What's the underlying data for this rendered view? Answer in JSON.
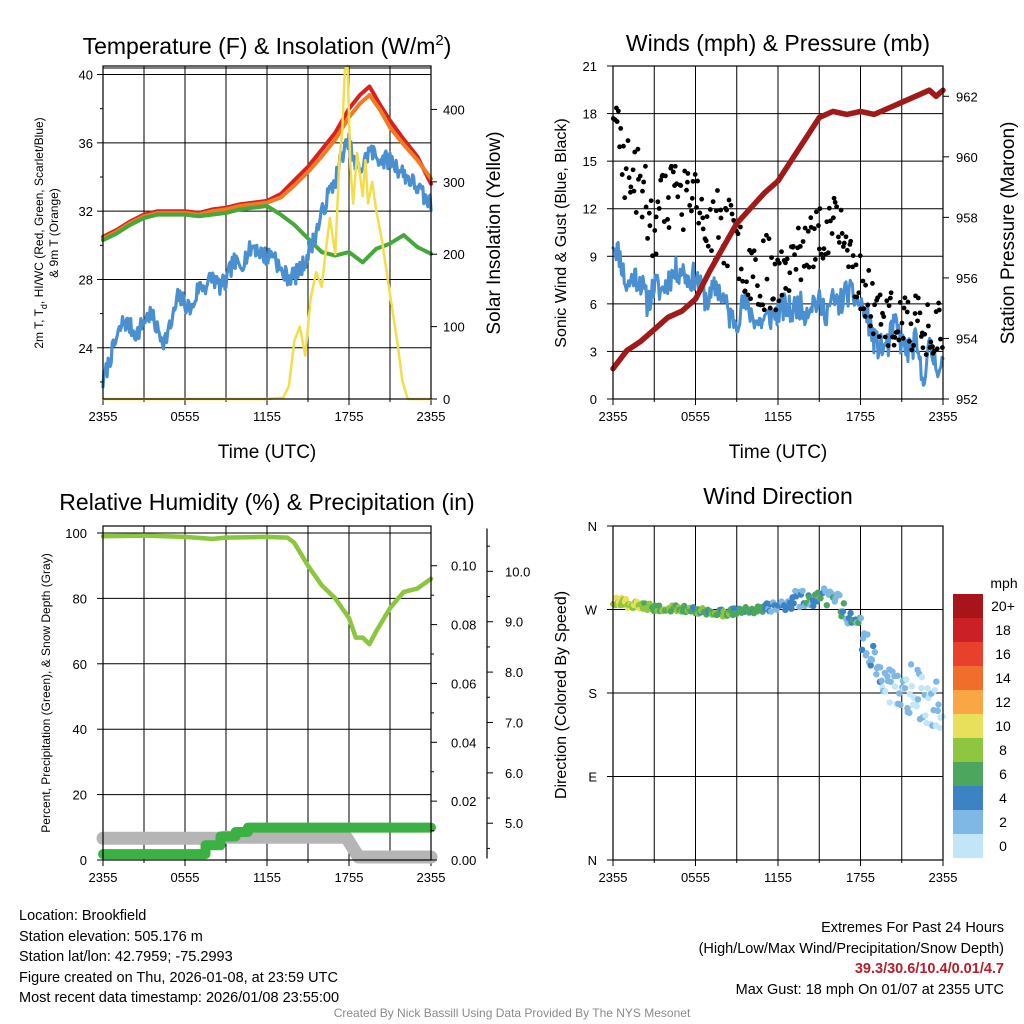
{
  "colors": {
    "temp": "#d7231f",
    "dewpoint": "#45a93a",
    "heatindex": "#4a8fd0",
    "temp9m": "#f07b22",
    "insolation": "#f3dd4a",
    "wind": "#4a8fd0",
    "gust": "#000000",
    "pressure": "#a01a1a",
    "rh": "#8cc63f",
    "precip": "#3bb143",
    "snow": "#b5b5b5"
  },
  "chart_data": [
    {
      "type": "line",
      "id": "temp",
      "title": "Temperature (F) & Insolation (W/m²)",
      "title_main": "Temperature (F) & Insolation (W/m",
      "title_sup": "2",
      "title_end": ")",
      "xlabel": "Time (UTC)",
      "ylabel_left": [
        "2m T, T",
        "d",
        ", HI/WC (Red, Green, Scarlet/Blue)",
        "& 9m T (Orange)"
      ],
      "ylabel_right": "Solar Insolation (Yellow)",
      "x_ticklabels": [
        "2355",
        "0555",
        "1155",
        "1755",
        "2355"
      ],
      "xlim": [
        0,
        24
      ],
      "ylim_left": [
        21,
        40.5
      ],
      "yticks_left": [
        24,
        28,
        32,
        36,
        40
      ],
      "ylim_right": [
        0,
        460
      ],
      "yticks_right": [
        0,
        100,
        200,
        300,
        400
      ],
      "series": [
        {
          "name": "2m T",
          "color_key": "temp",
          "axis": "left",
          "width": 4,
          "x": [
            0,
            1,
            2,
            3,
            4,
            5,
            6,
            7,
            8,
            9,
            10,
            11,
            12,
            13,
            14,
            15,
            16,
            17,
            18,
            18.8,
            19.5,
            20.3,
            21,
            22,
            23,
            24
          ],
          "y": [
            30.5,
            30.9,
            31.4,
            31.8,
            32.0,
            32.0,
            32.0,
            31.9,
            32.1,
            32.2,
            32.4,
            32.5,
            32.6,
            33.0,
            33.8,
            34.6,
            35.6,
            36.6,
            38.0,
            38.8,
            39.3,
            38.2,
            37.3,
            36.2,
            35.2,
            33.6
          ]
        },
        {
          "name": "9m T",
          "color_key": "temp9m",
          "axis": "left",
          "width": 4,
          "x": [
            0,
            1,
            2,
            3,
            4,
            5,
            6,
            7,
            8,
            9,
            10,
            11,
            12,
            13,
            14,
            15,
            16,
            17,
            18,
            18.8,
            19.5,
            20.3,
            21,
            22,
            23,
            24
          ],
          "y": [
            30.4,
            30.8,
            31.3,
            31.7,
            31.9,
            31.9,
            31.9,
            31.8,
            32.0,
            32.1,
            32.3,
            32.4,
            32.5,
            32.8,
            33.5,
            34.3,
            35.2,
            36.2,
            37.5,
            38.3,
            38.8,
            37.9,
            36.9,
            35.9,
            35.0,
            33.9
          ]
        },
        {
          "name": "Td",
          "color_key": "dewpoint",
          "axis": "left",
          "width": 4,
          "x": [
            0,
            1,
            2,
            3,
            4,
            5,
            6,
            7,
            8,
            9,
            10,
            11,
            12,
            13,
            14,
            15,
            16,
            17,
            18,
            19,
            20,
            21,
            22,
            23,
            24
          ],
          "y": [
            30.3,
            30.7,
            31.2,
            31.6,
            31.8,
            31.8,
            31.8,
            31.7,
            31.8,
            31.9,
            32.1,
            32.2,
            32.3,
            31.8,
            31.2,
            30.4,
            29.6,
            29.4,
            29.6,
            29.0,
            29.8,
            30.1,
            30.6,
            29.9,
            29.5
          ]
        },
        {
          "name": "HI/WC",
          "color_key": "heatindex",
          "axis": "left",
          "width": 3.2,
          "jitter": 0.55,
          "seed": 7,
          "x": [
            0,
            0.6,
            1,
            1.5,
            2,
            2.5,
            3,
            3.5,
            4,
            4.5,
            5,
            5.5,
            6,
            6.5,
            7,
            7.5,
            8,
            8.5,
            9,
            9.5,
            10,
            10.5,
            11,
            11.5,
            12,
            12.5,
            13,
            13.5,
            14,
            14.5,
            15,
            15.5,
            16,
            16.5,
            17,
            17.5,
            18,
            18.5,
            19,
            19.5,
            20,
            20.5,
            21,
            21.5,
            22,
            22.5,
            23,
            23.5,
            24
          ],
          "y": [
            22.0,
            23.6,
            24.5,
            25.6,
            25.2,
            24.8,
            25.6,
            26.0,
            25.0,
            24.4,
            25.4,
            27.0,
            26.6,
            26.2,
            27.6,
            27.6,
            28.2,
            27.6,
            27.8,
            29.0,
            28.8,
            29.4,
            30.0,
            29.6,
            29.3,
            29.6,
            28.4,
            28.2,
            28.2,
            28.6,
            29.5,
            30.5,
            31.8,
            33.0,
            33.8,
            35.4,
            36.0,
            34.4,
            34.6,
            35.6,
            35.2,
            35.0,
            35.0,
            34.6,
            34.2,
            33.8,
            33.4,
            32.8,
            32.4
          ]
        },
        {
          "name": "Solar Insolation",
          "color_key": "insolation",
          "axis": "right",
          "width": 2.5,
          "x": [
            0,
            4,
            8,
            12,
            13.2,
            13.6,
            14.0,
            14.4,
            14.8,
            15.2,
            15.6,
            16.0,
            16.3,
            16.6,
            17.0,
            17.3,
            17.5,
            17.7,
            17.9,
            18.1,
            18.3,
            18.6,
            19.0,
            19.2,
            19.4,
            19.7,
            20.0,
            20.4,
            20.8,
            21.2,
            21.6,
            21.9,
            22.3,
            24
          ],
          "y": [
            0,
            0,
            0,
            0,
            2,
            18,
            80,
            100,
            60,
            140,
            175,
            155,
            205,
            250,
            200,
            330,
            370,
            455,
            460,
            320,
            270,
            340,
            280,
            330,
            270,
            300,
            260,
            220,
            170,
            120,
            70,
            25,
            0,
            0
          ]
        }
      ]
    },
    {
      "type": "line",
      "id": "winds",
      "title": "Winds (mph) & Pressure (mb)",
      "xlabel": "Time (UTC)",
      "ylabel_left": "Sonic Wind & Gust (Blue, Black)",
      "ylabel_right": "Station Pressure (Maroon)",
      "x_ticklabels": [
        "2355",
        "0555",
        "1155",
        "1755",
        "2355"
      ],
      "xlim": [
        0,
        24
      ],
      "ylim_left": [
        0,
        21
      ],
      "yticks_left": [
        0,
        3,
        6,
        9,
        12,
        15,
        18,
        21
      ],
      "ylim_right": [
        952,
        963
      ],
      "yticks_right": [
        952,
        954,
        956,
        958,
        960,
        962
      ],
      "series": [
        {
          "name": "Sonic Wind",
          "color_key": "wind",
          "axis": "left",
          "width": 3,
          "jitter": 0.9,
          "seed": 11,
          "x": [
            0,
            0.5,
            1,
            1.5,
            2,
            2.5,
            3,
            3.5,
            4,
            4.5,
            5,
            5.5,
            6,
            6.5,
            7,
            7.5,
            8,
            8.5,
            9,
            9.5,
            10,
            10.5,
            11,
            11.5,
            12,
            12.5,
            13,
            13.5,
            14,
            14.5,
            15,
            15.5,
            16,
            16.5,
            17,
            17.5,
            18,
            18.5,
            19,
            19.5,
            20,
            20.5,
            21,
            21.5,
            22,
            22.5,
            23,
            23.5,
            24
          ],
          "y": [
            10.0,
            9.0,
            7.0,
            7.8,
            7.5,
            6.0,
            7.2,
            6.8,
            7.5,
            8.0,
            8.2,
            7.5,
            7.8,
            6.6,
            6.2,
            7.2,
            6.4,
            5.2,
            5.0,
            6.0,
            5.5,
            4.8,
            5.0,
            5.2,
            5.5,
            5.8,
            5.5,
            6.0,
            5.5,
            6.2,
            6.0,
            5.5,
            6.2,
            6.0,
            6.8,
            6.4,
            6.0,
            5.2,
            3.6,
            3.2,
            3.4,
            4.8,
            3.5,
            3.0,
            3.6,
            1.2,
            3.2,
            2.2,
            2.2
          ]
        },
        {
          "name": "Gust",
          "color_key": "gust",
          "axis": "left",
          "style": "dots",
          "count": 260,
          "spread": 2.4,
          "seed": 23,
          "x": [
            0,
            0.3,
            1,
            2,
            3,
            4,
            5,
            6,
            7,
            8,
            9,
            10,
            11,
            12,
            13,
            14,
            15,
            16,
            17,
            18,
            19,
            20,
            21,
            22,
            23,
            24
          ],
          "y": [
            18.0,
            16.0,
            14.0,
            13.0,
            10.5,
            12.0,
            12.5,
            11.5,
            10.0,
            10.5,
            9.0,
            8.0,
            7.5,
            7.5,
            8.0,
            9.0,
            10.0,
            11.0,
            9.0,
            7.0,
            5.5,
            4.5,
            4.2,
            4.5,
            4.2,
            4.5
          ]
        },
        {
          "name": "Station Pressure",
          "color_key": "pressure",
          "axis": "right",
          "width": 5.5,
          "x": [
            0,
            1,
            2,
            3,
            4,
            5,
            6,
            7,
            8,
            9,
            10,
            11,
            12,
            13,
            14,
            15,
            16,
            17,
            18,
            19,
            20,
            21,
            22,
            23,
            23.5,
            24
          ],
          "y": [
            953.0,
            953.6,
            953.9,
            954.3,
            954.7,
            954.9,
            955.3,
            956.2,
            957.0,
            957.8,
            958.3,
            958.8,
            959.2,
            959.9,
            960.6,
            961.3,
            961.5,
            961.4,
            961.5,
            961.4,
            961.6,
            961.8,
            962.0,
            962.2,
            962.0,
            962.2
          ]
        }
      ]
    },
    {
      "type": "line",
      "id": "rh",
      "title": "Relative Humidity (%) & Precipitation (in)",
      "xlabel": "",
      "ylabel_left": "Percent, Precipitation (Green), & Snow Depth (Gray)",
      "x_ticklabels": [
        "2355",
        "0555",
        "1155",
        "1755",
        "2355"
      ],
      "xlim": [
        0,
        24
      ],
      "ylim_left": [
        0,
        100
      ],
      "yticks_left": [
        0,
        20,
        40,
        60,
        80,
        100
      ],
      "ylim_precip": [
        0,
        0.1135
      ],
      "yticks_precip": [
        0.0,
        0.02,
        0.04,
        0.06,
        0.08,
        0.1
      ],
      "precip_ticklabels": [
        "0.00",
        "0.02",
        "0.04",
        "0.06",
        "0.08",
        "0.10"
      ],
      "ylim_snow": [
        4.27,
        10.9
      ],
      "yticks_snow": [
        5.0,
        6.0,
        7.0,
        8.0,
        9.0,
        10.0
      ],
      "snow_ticklabels": [
        "5.0",
        "6.0",
        "7.0",
        "8.0",
        "9.0",
        "10.0"
      ],
      "series": [
        {
          "name": "Snow Depth",
          "color_key": "snow",
          "axis": "snow",
          "width": 13,
          "x": [
            0,
            8.5,
            8.9,
            17.8,
            18.7,
            24
          ],
          "y": [
            4.7,
            4.7,
            4.72,
            4.72,
            4.33,
            4.33
          ]
        },
        {
          "name": "Relative Humidity",
          "color_key": "rh",
          "axis": "left",
          "width": 4.5,
          "x": [
            0,
            3,
            6,
            8,
            9,
            12,
            13.5,
            14,
            15,
            16,
            17,
            18,
            18.5,
            19,
            19.5,
            20,
            21,
            22,
            23,
            24
          ],
          "y": [
            99,
            99.2,
            98.8,
            98.2,
            98.6,
            98.8,
            98.6,
            97,
            90,
            84,
            80,
            74,
            68,
            68,
            66,
            70,
            77,
            82,
            83,
            86
          ]
        },
        {
          "name": "Precipitation",
          "color_key": "precip",
          "axis": "precip",
          "width": 10,
          "x": [
            0,
            7.5,
            7.5,
            8.6,
            8.6,
            9.7,
            9.7,
            10.6,
            10.6,
            24
          ],
          "y": [
            0.002,
            0.002,
            0.005,
            0.005,
            0.008,
            0.008,
            0.0095,
            0.0095,
            0.011,
            0.011
          ]
        }
      ]
    },
    {
      "type": "scatter",
      "id": "winddir",
      "title": "Wind Direction",
      "ylabel_left": "Direction (Colored By Speed)",
      "x_ticklabels": [
        "2355",
        "0555",
        "1155",
        "1755",
        "2355"
      ],
      "xlim": [
        0,
        24
      ],
      "ylim_left": [
        0,
        360
      ],
      "yticks_left": [
        0,
        90,
        180,
        270,
        360
      ],
      "y_ticklabels": [
        "N",
        "E",
        "S",
        "W",
        "N"
      ],
      "colorbar_title": "mph",
      "colorbar_labels": [
        "20+",
        "18",
        "16",
        "14",
        "12",
        "10",
        "8",
        "6",
        "4",
        "2",
        "0"
      ],
      "colorbar_colors": [
        "#a8141a",
        "#cc2027",
        "#e8402c",
        "#f06d2b",
        "#f9a645",
        "#e8df5a",
        "#8ec63f",
        "#4da65e",
        "#3c83c4",
        "#7fb8e4",
        "#c3e5f8"
      ],
      "segments": [
        {
          "x0": 0.0,
          "x1": 2.0,
          "y0": 280,
          "y1": 273,
          "spread": 5,
          "n": 28,
          "speed": [
            8,
            12
          ]
        },
        {
          "x0": 2.0,
          "x1": 5.0,
          "y0": 273,
          "y1": 270,
          "spread": 4,
          "n": 34,
          "speed": [
            6,
            10
          ]
        },
        {
          "x0": 5.0,
          "x1": 8.5,
          "y0": 270,
          "y1": 266,
          "spread": 4,
          "n": 38,
          "speed": [
            5,
            9
          ]
        },
        {
          "x0": 8.5,
          "x1": 11.0,
          "y0": 268,
          "y1": 270,
          "spread": 4,
          "n": 26,
          "speed": [
            5,
            8
          ]
        },
        {
          "x0": 11.0,
          "x1": 13.0,
          "y0": 272,
          "y1": 275,
          "spread": 5,
          "n": 24,
          "speed": [
            3,
            6
          ]
        },
        {
          "x0": 13.0,
          "x1": 16.5,
          "y0": 282,
          "y1": 285,
          "spread": 10,
          "n": 34,
          "speed": [
            2,
            8
          ]
        },
        {
          "x0": 16.5,
          "x1": 18.0,
          "y0": 270,
          "y1": 255,
          "spread": 10,
          "n": 16,
          "speed": [
            3,
            7
          ]
        },
        {
          "x0": 18.0,
          "x1": 19.5,
          "y0": 245,
          "y1": 195,
          "spread": 18,
          "n": 18,
          "speed": [
            2,
            5
          ]
        },
        {
          "x0": 19.5,
          "x1": 21.5,
          "y0": 195,
          "y1": 175,
          "spread": 20,
          "n": 26,
          "speed": [
            1,
            4
          ]
        },
        {
          "x0": 21.5,
          "x1": 24.0,
          "y0": 185,
          "y1": 165,
          "spread": 28,
          "n": 34,
          "speed": [
            0,
            4
          ]
        }
      ]
    }
  ],
  "info": {
    "location": "Location: Brookfield",
    "elevation": "Station elevation: 505.176 m",
    "latlon": "Station lat/lon: 42.7959; -75.2993",
    "created": "Figure created on Thu, 2026-01-08, at 23:59 UTC",
    "latest": "Most recent data timestamp: 2026/01/08 23:55:00"
  },
  "extremes": {
    "title": "Extremes For Past 24 Hours",
    "subtitle": "(High/Low/Max Wind/Precipitation/Snow Depth)",
    "values": "39.3/30.6/10.4/0.01/4.7",
    "max_gust": "Max Gust: 18 mph On 01/07 at 2355 UTC"
  },
  "credit": "Created By Nick Bassill Using Data Provided By The NYS Mesonet"
}
